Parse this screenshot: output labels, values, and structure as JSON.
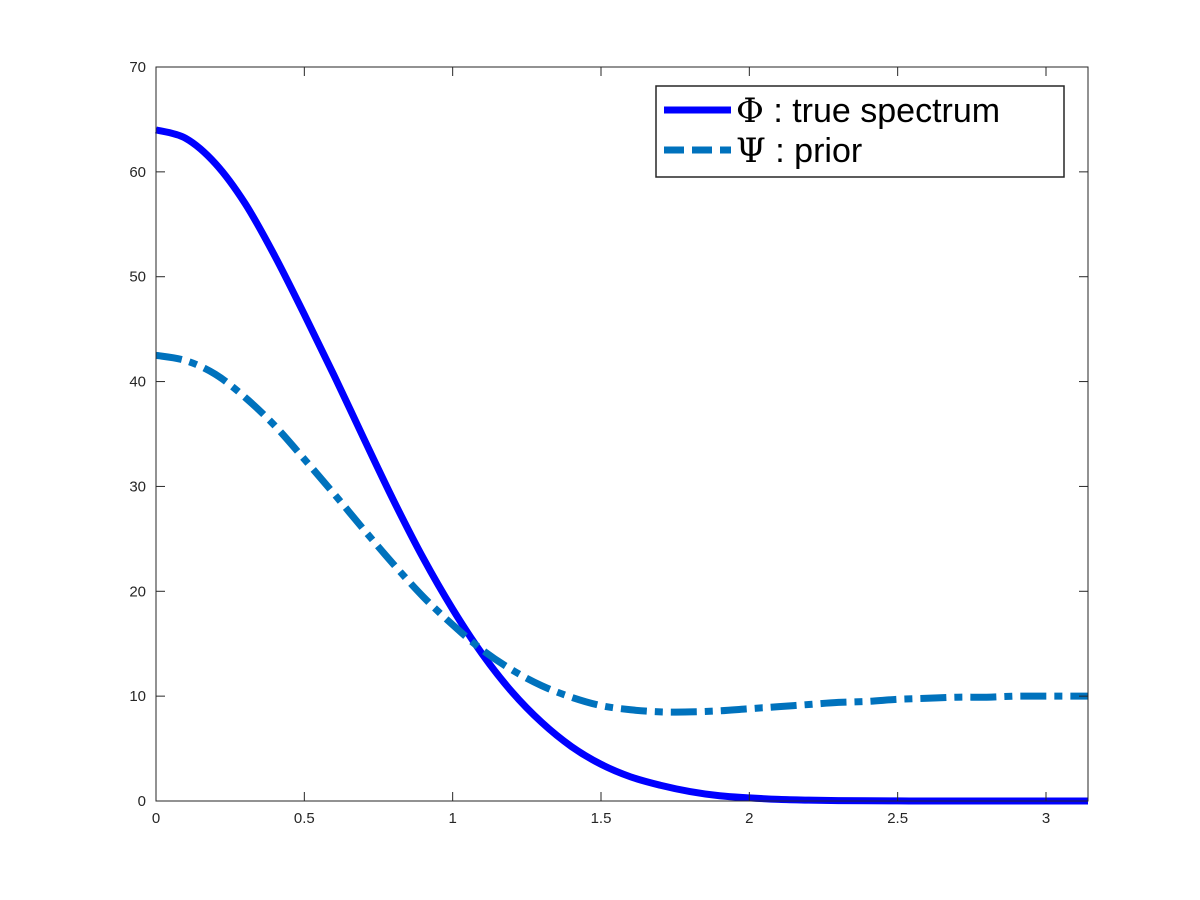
{
  "chart_data": {
    "type": "line",
    "title": "",
    "xlabel": "",
    "ylabel": "",
    "xlim": [
      0,
      3.14159
    ],
    "ylim": [
      0,
      70
    ],
    "x_ticks": [
      0,
      0.5,
      1,
      1.5,
      2,
      2.5,
      3
    ],
    "x_tick_labels": [
      "0",
      "0.5",
      "1",
      "1.5",
      "2",
      "2.5",
      "3"
    ],
    "y_ticks": [
      0,
      10,
      20,
      30,
      40,
      50,
      60,
      70
    ],
    "y_tick_labels": [
      "0",
      "10",
      "20",
      "30",
      "40",
      "50",
      "60",
      "70"
    ],
    "grid": false,
    "legend_position": "top-right",
    "x": [
      0,
      0.1,
      0.2,
      0.3,
      0.4,
      0.5,
      0.6,
      0.7,
      0.8,
      0.9,
      1.0,
      1.1,
      1.2,
      1.3,
      1.4,
      1.5,
      1.6,
      1.7,
      1.8,
      1.9,
      2.0,
      2.1,
      2.2,
      2.3,
      2.4,
      2.5,
      2.6,
      2.7,
      2.8,
      2.9,
      3.0,
      3.1,
      3.14159
    ],
    "series": [
      {
        "name": "Φ : true spectrum",
        "symbol": "Φ",
        "label": " : true spectrum",
        "color": "#0000ff",
        "style": "solid",
        "values": [
          64.0,
          63.2,
          60.8,
          57.0,
          52.0,
          46.4,
          40.6,
          34.6,
          28.7,
          23.2,
          18.3,
          14.0,
          10.4,
          7.5,
          5.2,
          3.5,
          2.3,
          1.5,
          0.9,
          0.5,
          0.3,
          0.15,
          0.08,
          0.04,
          0.02,
          0.01,
          0.0,
          0.0,
          0.0,
          0.0,
          0.0,
          0.0,
          0.0
        ]
      },
      {
        "name": "Ψ : prior",
        "symbol": "Ψ",
        "label": " : prior",
        "color": "#0072bd",
        "style": "dashed",
        "values": [
          42.5,
          42.0,
          40.7,
          38.5,
          35.8,
          32.6,
          29.3,
          25.9,
          22.6,
          19.5,
          16.8,
          14.4,
          12.5,
          11.0,
          9.9,
          9.1,
          8.7,
          8.5,
          8.5,
          8.6,
          8.8,
          9.0,
          9.2,
          9.4,
          9.5,
          9.7,
          9.8,
          9.9,
          9.9,
          10.0,
          10.0,
          10.0,
          10.0
        ]
      }
    ]
  }
}
